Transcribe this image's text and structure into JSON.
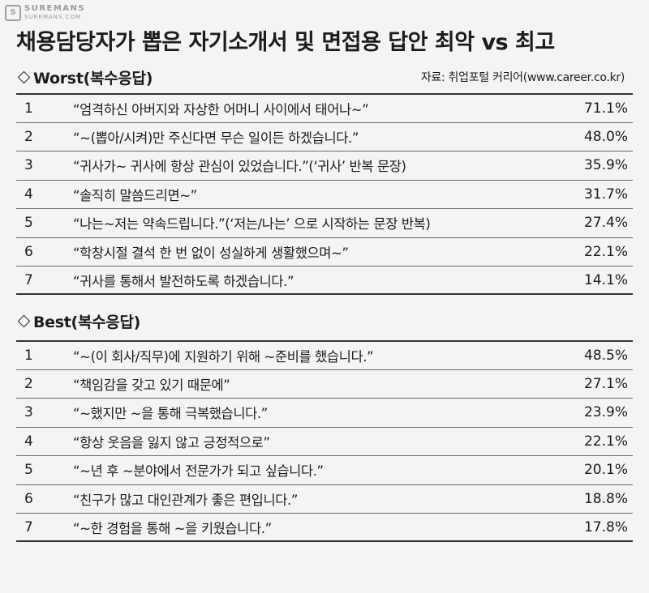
{
  "watermark": {
    "logo": "S",
    "name": "SUREMANS",
    "url": "SUREMANS.COM"
  },
  "title": "채용담당자가 뽑은 자기소개서 및 면접용 답안 최악 vs 최고",
  "worst": {
    "heading": "Worst(복수응답)",
    "source": "자료: 취업포털 커리어(www.career.co.kr)",
    "rows": [
      {
        "rank": "1",
        "text": "“엄격하신 아버지와 자상한 어머니 사이에서 태어나~”",
        "pct": "71.1%"
      },
      {
        "rank": "2",
        "text": "“~(뽑아/시켜)만 주신다면 무슨 일이든 하겠습니다.”",
        "pct": "48.0%"
      },
      {
        "rank": "3",
        "text": "“귀사가~ 귀사에 항상 관심이 있었습니다.”(‘귀사’ 반복 문장)",
        "pct": "35.9%"
      },
      {
        "rank": "4",
        "text": "“솔직히 말씀드리면~”",
        "pct": "31.7%"
      },
      {
        "rank": "5",
        "text": "“나는~저는 약속드립니다.”(‘저는/나는’ 으로 시작하는 문장 반복)",
        "pct": "27.4%"
      },
      {
        "rank": "6",
        "text": "“학창시절 결석 한 번 없이 성실하게 생활했으며~”",
        "pct": "22.1%"
      },
      {
        "rank": "7",
        "text": "“귀사를 통해서 발전하도록 하겠습니다.”",
        "pct": "14.1%"
      }
    ]
  },
  "best": {
    "heading": "Best(복수응답)",
    "rows": [
      {
        "rank": "1",
        "text": "“~(이 회사/직무)에 지원하기 위해 ~준비를 했습니다.”",
        "pct": "48.5%"
      },
      {
        "rank": "2",
        "text": "“책임감을 갖고 있기 때문에”",
        "pct": "27.1%"
      },
      {
        "rank": "3",
        "text": "“~했지만 ~을 통해 극복했습니다.”",
        "pct": "23.9%"
      },
      {
        "rank": "4",
        "text": "“항상 웃음을 잃지 않고 긍정적으로”",
        "pct": "22.1%"
      },
      {
        "rank": "5",
        "text": "“~년 후 ~분야에서 전문가가 되고 싶습니다.”",
        "pct": "20.1%"
      },
      {
        "rank": "6",
        "text": "“친구가 많고 대인관계가 좋은 편입니다.”",
        "pct": "18.8%"
      },
      {
        "rank": "7",
        "text": "“~한 경험을 통해 ~을 키웠습니다.”",
        "pct": "17.8%"
      }
    ]
  }
}
